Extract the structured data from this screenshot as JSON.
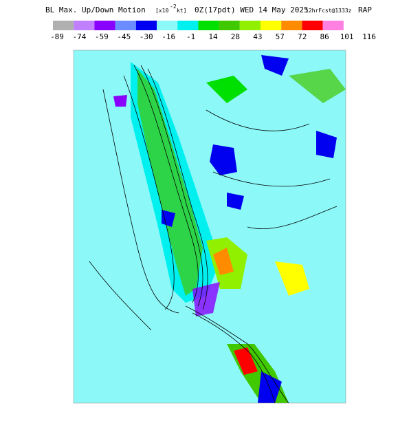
{
  "header": {
    "title_main": "BL Max. Up/Down Motion",
    "units_prefix": "[x10",
    "units_exponent": "-2",
    "units_suffix": "kt]",
    "run": "0Z(17pdt) WED 14 May 2025",
    "forecast": "12hrFcst@1333z",
    "model": "RAP"
  },
  "legend": {
    "colors": [
      "#b0b0b0",
      "#c080ff",
      "#8a00ff",
      "#6a8cff",
      "#0000f0",
      "#8cf8f8",
      "#00f0f0",
      "#00e000",
      "#40c800",
      "#90f000",
      "#ffff00",
      "#ff8c00",
      "#ff0000",
      "#ff80e0"
    ],
    "labels": [
      "-89",
      "-74",
      "-59",
      "-45",
      "-30",
      "-16",
      "-1",
      "14",
      "28",
      "43",
      "57",
      "72",
      "86",
      "101",
      "116"
    ]
  }
}
